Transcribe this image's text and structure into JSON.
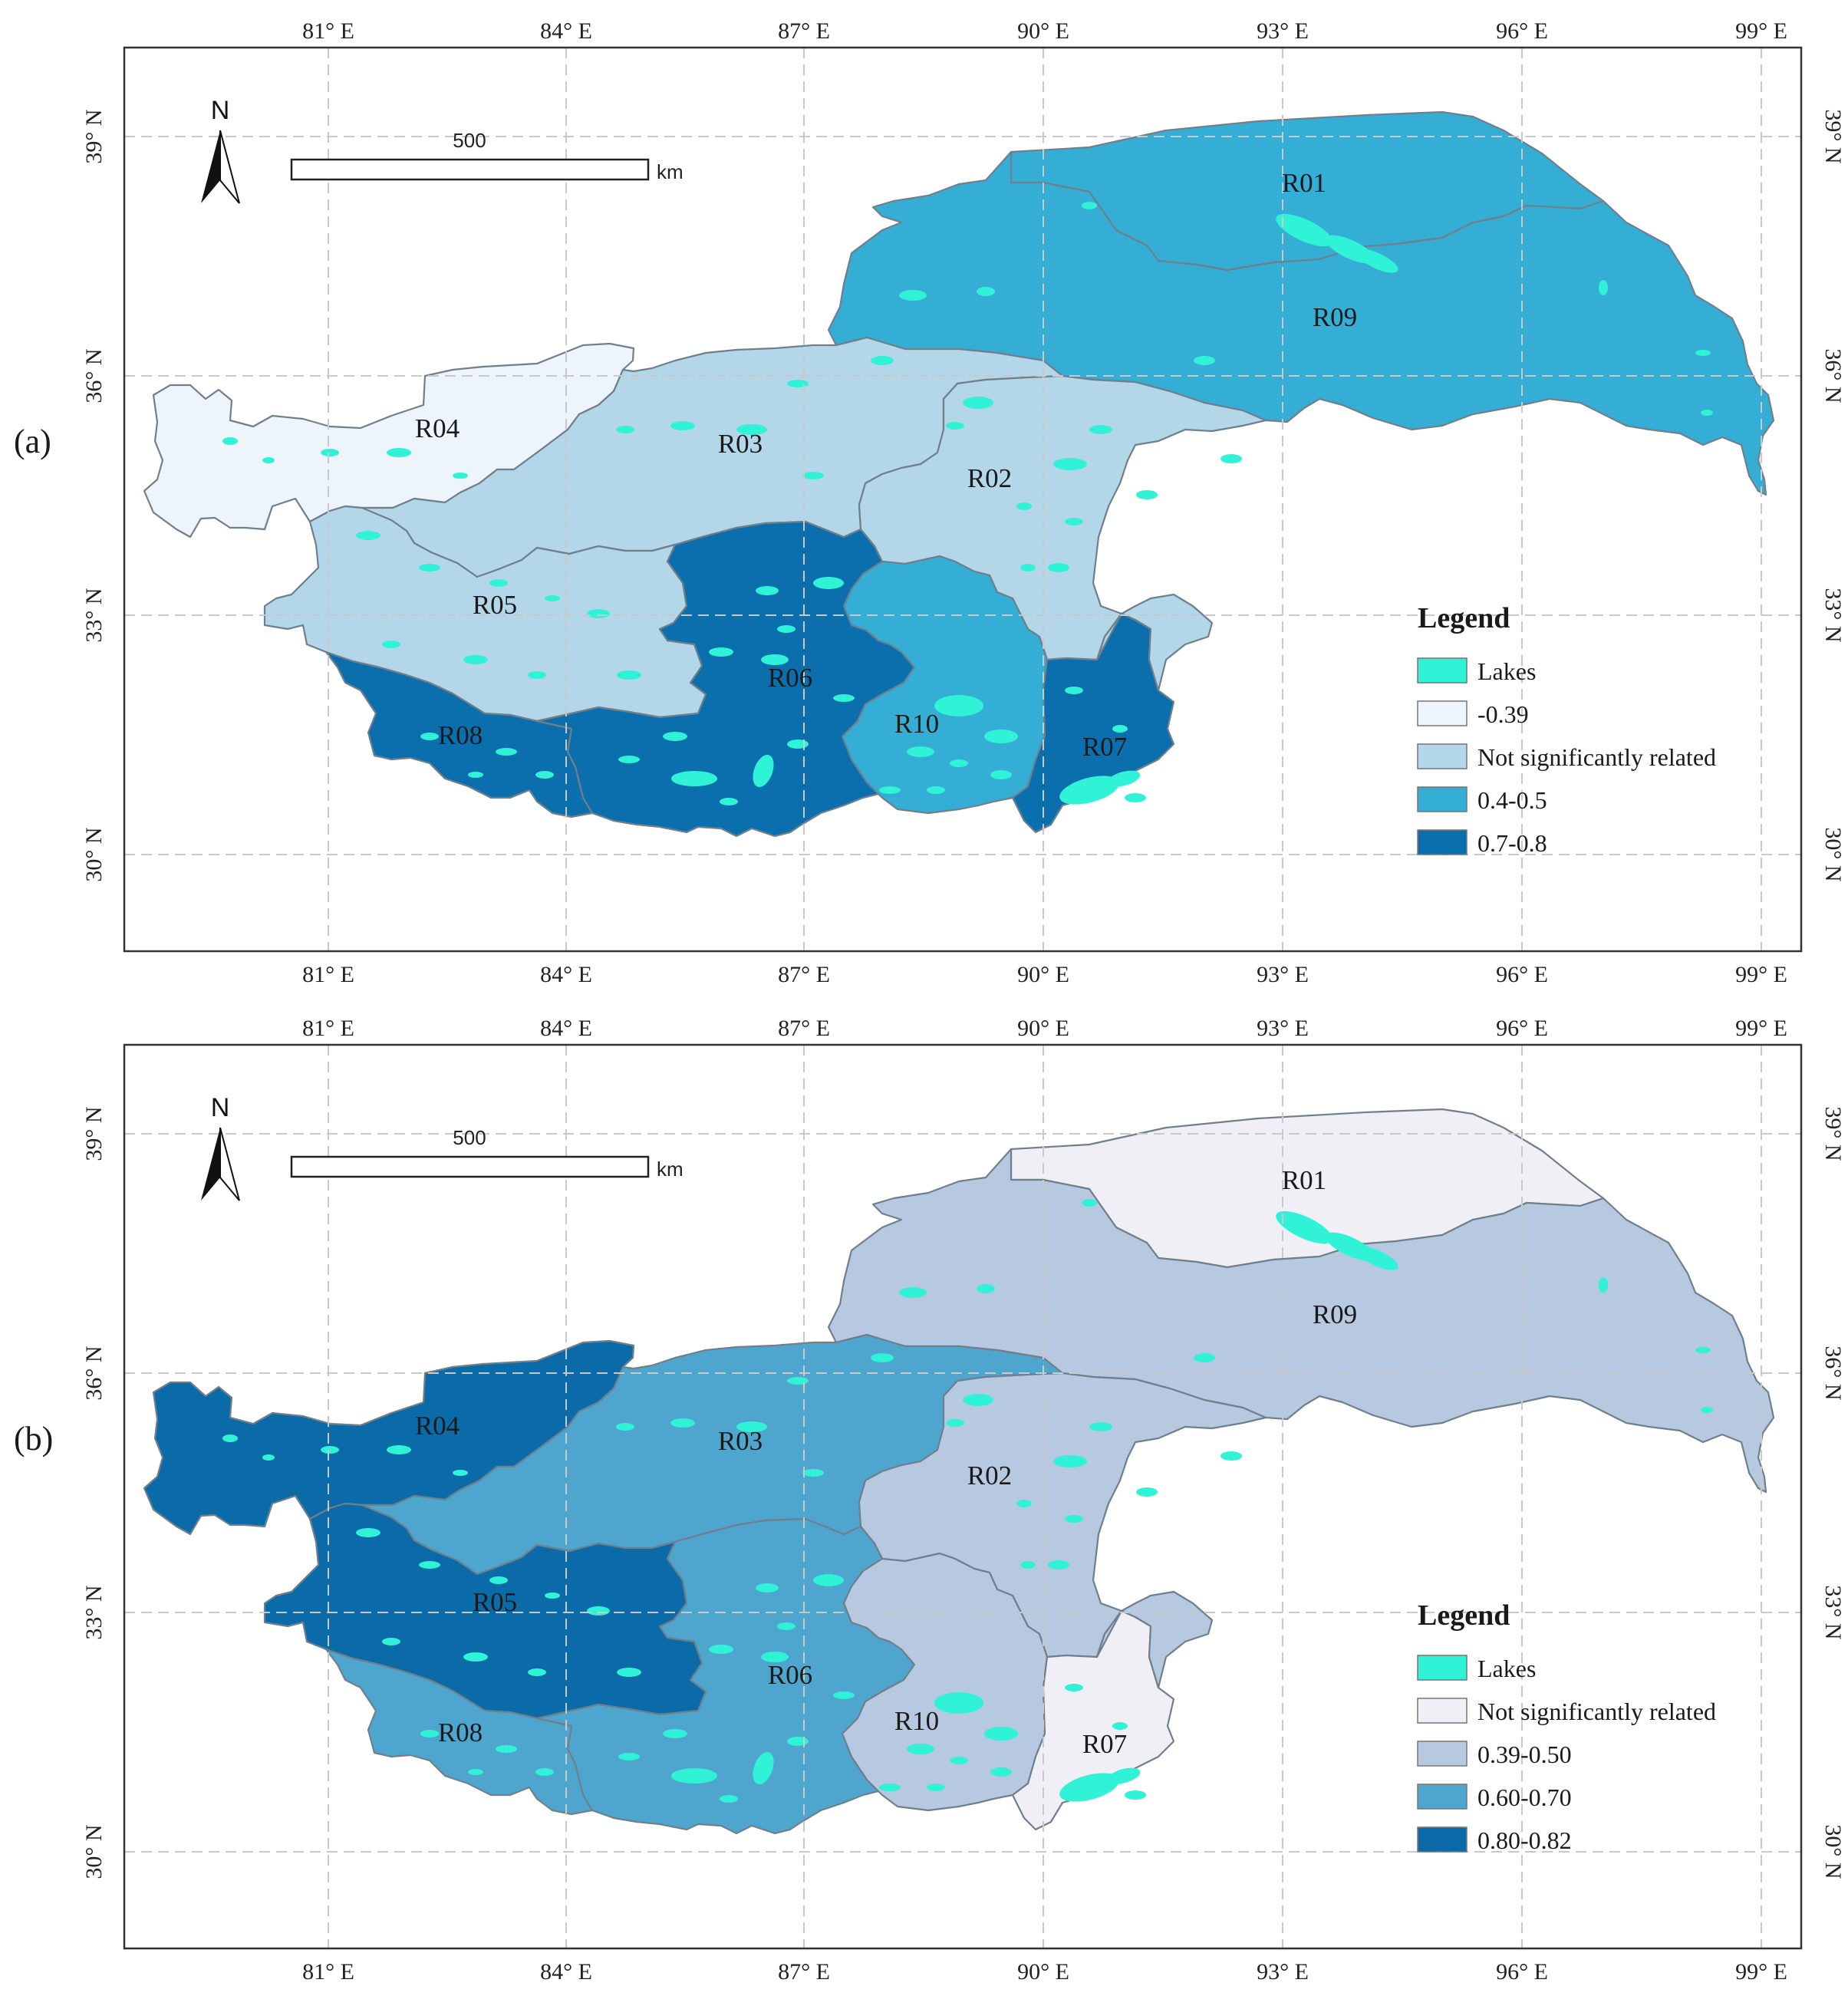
{
  "axes": {
    "lon_labels": [
      "81° E",
      "84° E",
      "87° E",
      "90° E",
      "93° E",
      "96° E",
      "99° E"
    ],
    "lat_labels": [
      "39° N",
      "36° N",
      "33° N",
      "30° N"
    ]
  },
  "scale_bar": {
    "distance": "500",
    "unit": "km"
  },
  "north_arrow": {
    "label": "N",
    "icon": "north-arrow-icon"
  },
  "panels": [
    {
      "label": "(a)",
      "legend": {
        "title": "Legend",
        "items": [
          {
            "label": "Lakes",
            "color": "#2ff2d6"
          },
          {
            "label": "-0.39",
            "color": "#eef4fc"
          },
          {
            "label": "Not significantly related",
            "color": "#b3d7e8"
          },
          {
            "label": "0.4-0.5",
            "color": "#35aed6"
          },
          {
            "label": "0.7-0.8",
            "color": "#0b6fae"
          }
        ]
      },
      "regions": [
        {
          "id": "R01",
          "color": "#35aed6"
        },
        {
          "id": "R09",
          "color": "#35aed6"
        },
        {
          "id": "R04",
          "color": "#eef4fc"
        },
        {
          "id": "R03",
          "color": "#b3d7e8"
        },
        {
          "id": "R02",
          "color": "#b3d7e8"
        },
        {
          "id": "R05",
          "color": "#b3d7e8"
        },
        {
          "id": "R06",
          "color": "#0b6fae"
        },
        {
          "id": "R10",
          "color": "#35aed6"
        },
        {
          "id": "R07",
          "color": "#0b6fae"
        },
        {
          "id": "R08",
          "color": "#0b6fae"
        }
      ]
    },
    {
      "label": "(b)",
      "legend": {
        "title": "Legend",
        "items": [
          {
            "label": "Lakes",
            "color": "#2ff2d6"
          },
          {
            "label": "Not significantly related",
            "color": "#f1eff6"
          },
          {
            "label": "0.39-0.50",
            "color": "#b6c9e0"
          },
          {
            "label": "0.60-0.70",
            "color": "#4ea6cf"
          },
          {
            "label": "0.80-0.82",
            "color": "#0a6ba8"
          }
        ]
      },
      "regions": [
        {
          "id": "R01",
          "color": "#f1eff6"
        },
        {
          "id": "R09",
          "color": "#b6c9e0"
        },
        {
          "id": "R04",
          "color": "#0a6ba8"
        },
        {
          "id": "R03",
          "color": "#4ea6cf"
        },
        {
          "id": "R02",
          "color": "#b6c9e0"
        },
        {
          "id": "R05",
          "color": "#0a6ba8"
        },
        {
          "id": "R06",
          "color": "#4ea6cf"
        },
        {
          "id": "R10",
          "color": "#b6c9e0"
        },
        {
          "id": "R07",
          "color": "#f1eff6"
        },
        {
          "id": "R08",
          "color": "#4ea6cf"
        }
      ]
    }
  ]
}
